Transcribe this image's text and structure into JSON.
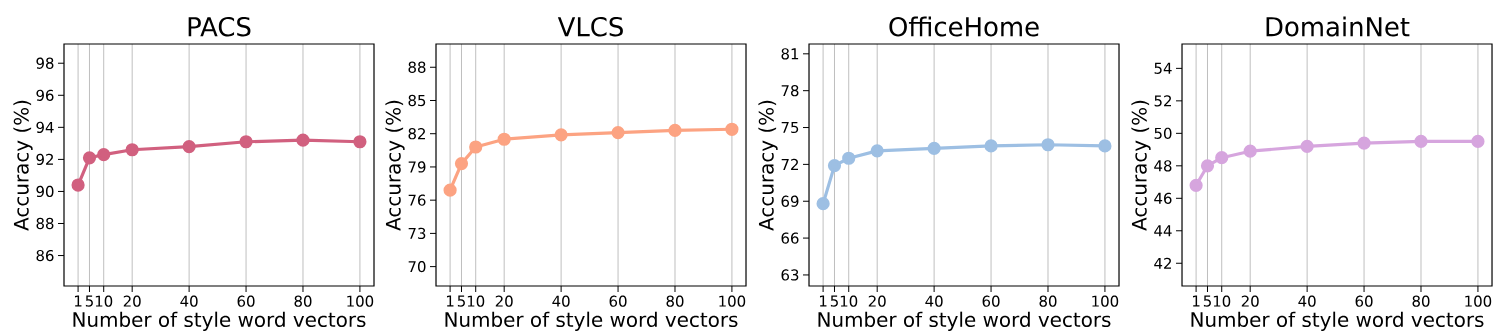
{
  "chart_data": [
    {
      "type": "line",
      "title": "PACS",
      "xlabel": "Number of style word vectors",
      "ylabel": "Accuracy (%)",
      "x": [
        1,
        5,
        10,
        20,
        40,
        60,
        80,
        100
      ],
      "series": [
        {
          "color": "#d1607f",
          "values": [
            90.4,
            92.1,
            92.3,
            92.6,
            92.8,
            93.1,
            93.2,
            93.1
          ]
        }
      ],
      "xlim": [
        -3.95,
        104.95
      ],
      "ylim": [
        84.1,
        99.2
      ],
      "xticks": [
        1,
        5,
        10,
        20,
        40,
        60,
        80,
        100
      ],
      "yticks": [
        86,
        88,
        90,
        92,
        94,
        96,
        98
      ],
      "grid": "x",
      "marker": "circle"
    },
    {
      "type": "line",
      "title": "VLCS",
      "xlabel": "Number of style word vectors",
      "ylabel": "Accuracy (%)",
      "x": [
        1,
        5,
        10,
        20,
        40,
        60,
        80,
        100
      ],
      "series": [
        {
          "color": "#fca382",
          "values": [
            76.9,
            79.3,
            80.8,
            81.5,
            81.9,
            82.1,
            82.3,
            82.4
          ]
        }
      ],
      "xlim": [
        -3.95,
        104.95
      ],
      "ylim": [
        68.25,
        90.1
      ],
      "xticks": [
        1,
        5,
        10,
        20,
        40,
        60,
        80,
        100
      ],
      "yticks": [
        70,
        73,
        76,
        79,
        82,
        85,
        88
      ],
      "grid": "x",
      "marker": "circle"
    },
    {
      "type": "line",
      "title": "OfficeHome",
      "xlabel": "Number of style word vectors",
      "ylabel": "Accuracy (%)",
      "x": [
        1,
        5,
        10,
        20,
        40,
        60,
        80,
        100
      ],
      "series": [
        {
          "color": "#9dbfe3",
          "values": [
            68.8,
            71.9,
            72.5,
            73.1,
            73.3,
            73.5,
            73.6,
            73.5
          ]
        }
      ],
      "xlim": [
        -3.95,
        104.95
      ],
      "ylim": [
        62.1,
        81.8
      ],
      "xticks": [
        1,
        5,
        10,
        20,
        40,
        60,
        80,
        100
      ],
      "yticks": [
        63,
        66,
        69,
        72,
        75,
        78,
        81
      ],
      "grid": "x",
      "marker": "circle"
    },
    {
      "type": "line",
      "title": "DomainNet",
      "xlabel": "Number of style word vectors",
      "ylabel": "Accuracy (%)",
      "x": [
        1,
        5,
        10,
        20,
        40,
        60,
        80,
        100
      ],
      "series": [
        {
          "color": "#d6a5de",
          "values": [
            46.8,
            48.0,
            48.5,
            48.9,
            49.2,
            49.4,
            49.5,
            49.5
          ]
        }
      ],
      "xlim": [
        -3.95,
        104.95
      ],
      "ylim": [
        40.6,
        55.5
      ],
      "xticks": [
        1,
        5,
        10,
        20,
        40,
        60,
        80,
        100
      ],
      "yticks": [
        42,
        44,
        46,
        48,
        50,
        52,
        54
      ],
      "grid": "x",
      "marker": "circle"
    }
  ]
}
